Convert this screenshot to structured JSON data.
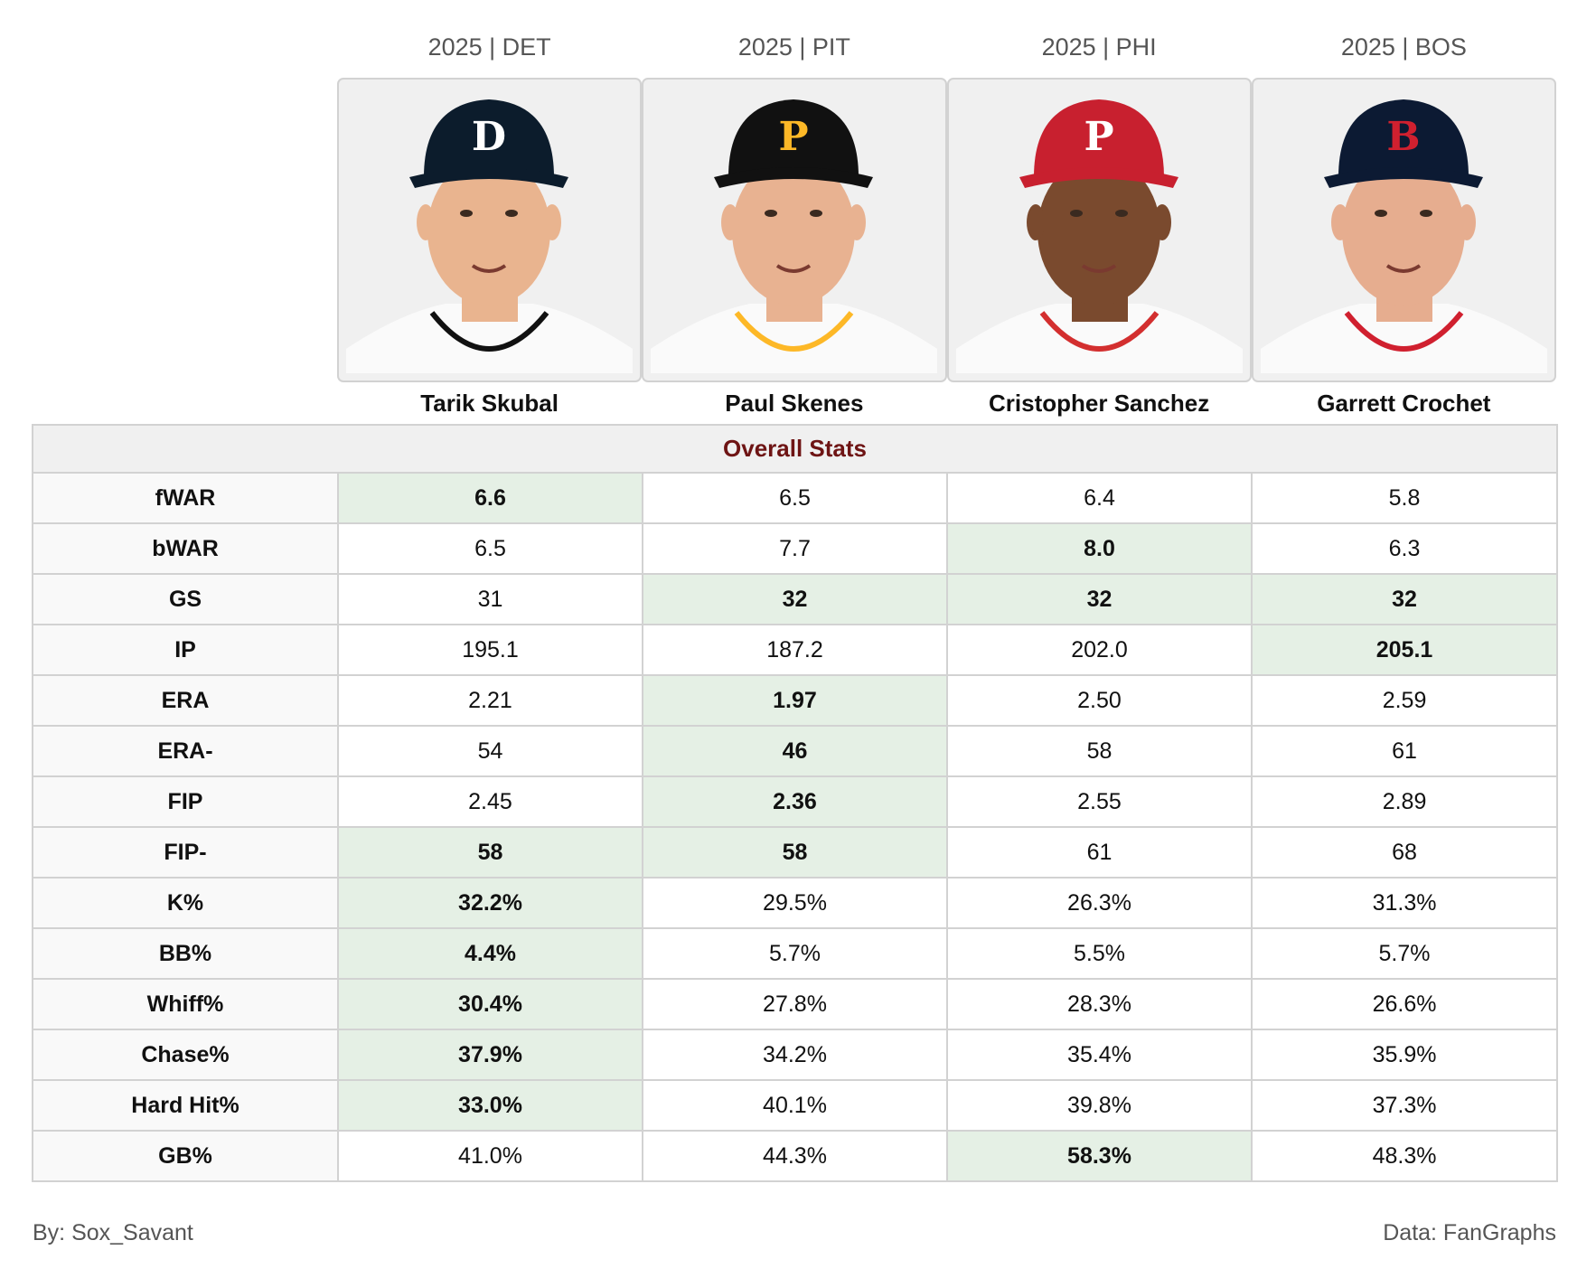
{
  "players": [
    {
      "name": "Tarik Skubal",
      "season_team": "2025 | DET",
      "cap_color": "#0c1c2c",
      "logo_letter": "D",
      "logo_color": "#ffffff",
      "jersey_trim": "#111111",
      "skin": "#e9b48f"
    },
    {
      "name": "Paul Skenes",
      "season_team": "2025 | PIT",
      "cap_color": "#111111",
      "logo_letter": "P",
      "logo_color": "#fdb827",
      "jersey_trim": "#fdb827",
      "skin": "#e8b291"
    },
    {
      "name": "Cristopher Sanchez",
      "season_team": "2025 | PHI",
      "cap_color": "#c8202f",
      "logo_letter": "P",
      "logo_color": "#ffffff",
      "jersey_trim": "#d32f2f",
      "skin": "#7a4a2e"
    },
    {
      "name": "Garrett Crochet",
      "season_team": "2025 | BOS",
      "cap_color": "#0c1a33",
      "logo_letter": "B",
      "logo_color": "#d0202f",
      "jersey_trim": "#d0202f",
      "skin": "#e6ad8f"
    }
  ],
  "table": {
    "section_title": "Overall Stats",
    "rows": [
      {
        "label": "fWAR",
        "values": [
          "6.6",
          "6.5",
          "6.4",
          "5.8"
        ],
        "best": [
          true,
          false,
          false,
          false
        ]
      },
      {
        "label": "bWAR",
        "values": [
          "6.5",
          "7.7",
          "8.0",
          "6.3"
        ],
        "best": [
          false,
          false,
          true,
          false
        ]
      },
      {
        "label": "GS",
        "values": [
          "31",
          "32",
          "32",
          "32"
        ],
        "best": [
          false,
          true,
          true,
          true
        ]
      },
      {
        "label": "IP",
        "values": [
          "195.1",
          "187.2",
          "202.0",
          "205.1"
        ],
        "best": [
          false,
          false,
          false,
          true
        ]
      },
      {
        "label": "ERA",
        "values": [
          "2.21",
          "1.97",
          "2.50",
          "2.59"
        ],
        "best": [
          false,
          true,
          false,
          false
        ]
      },
      {
        "label": "ERA-",
        "values": [
          "54",
          "46",
          "58",
          "61"
        ],
        "best": [
          false,
          true,
          false,
          false
        ]
      },
      {
        "label": "FIP",
        "values": [
          "2.45",
          "2.36",
          "2.55",
          "2.89"
        ],
        "best": [
          false,
          true,
          false,
          false
        ]
      },
      {
        "label": "FIP-",
        "values": [
          "58",
          "58",
          "61",
          "68"
        ],
        "best": [
          true,
          true,
          false,
          false
        ]
      },
      {
        "label": "K%",
        "values": [
          "32.2%",
          "29.5%",
          "26.3%",
          "31.3%"
        ],
        "best": [
          true,
          false,
          false,
          false
        ]
      },
      {
        "label": "BB%",
        "values": [
          "4.4%",
          "5.7%",
          "5.5%",
          "5.7%"
        ],
        "best": [
          true,
          false,
          false,
          false
        ]
      },
      {
        "label": "Whiff%",
        "values": [
          "30.4%",
          "27.8%",
          "28.3%",
          "26.6%"
        ],
        "best": [
          true,
          false,
          false,
          false
        ]
      },
      {
        "label": "Chase%",
        "values": [
          "37.9%",
          "34.2%",
          "35.4%",
          "35.9%"
        ],
        "best": [
          true,
          false,
          false,
          false
        ]
      },
      {
        "label": "Hard Hit%",
        "values": [
          "33.0%",
          "40.1%",
          "39.8%",
          "37.3%"
        ],
        "best": [
          true,
          false,
          false,
          false
        ]
      },
      {
        "label": "GB%",
        "values": [
          "41.0%",
          "44.3%",
          "58.3%",
          "48.3%"
        ],
        "best": [
          false,
          false,
          true,
          false
        ]
      }
    ]
  },
  "colors": {
    "section_title": "#6e1414",
    "best_highlight": "#e5f0e5",
    "label_bg": "#f9f9f9",
    "border": "#d2d2d2"
  },
  "footer": {
    "credit": "By: Sox_Savant",
    "source": "Data: FanGraphs"
  }
}
